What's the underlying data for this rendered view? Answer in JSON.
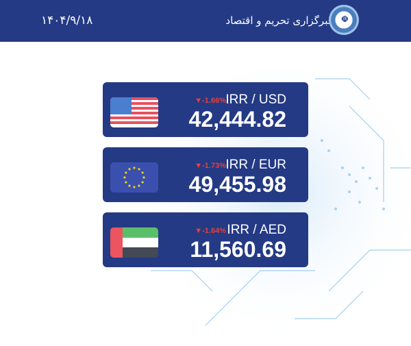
{
  "header": {
    "date": "۱۴۰۴/۹/۱۸",
    "brand": "خبرگزاری تحریم و اقتصاد",
    "brand_color": "#243a85"
  },
  "rates": [
    {
      "pair": "IRR / USD",
      "change": "▼-1.66%",
      "value": "42,444.82",
      "flag": "usa-flag"
    },
    {
      "pair": "IRR / EUR",
      "change": "▼-1.73%",
      "value": "49,455.98",
      "flag": "eu-flag"
    },
    {
      "pair": "IRR / AED",
      "change": "▼-1.64%",
      "value": "11,560.69",
      "flag": "uae-flag"
    }
  ],
  "colors": {
    "card": "#243a85",
    "negative": "#e8403a"
  }
}
